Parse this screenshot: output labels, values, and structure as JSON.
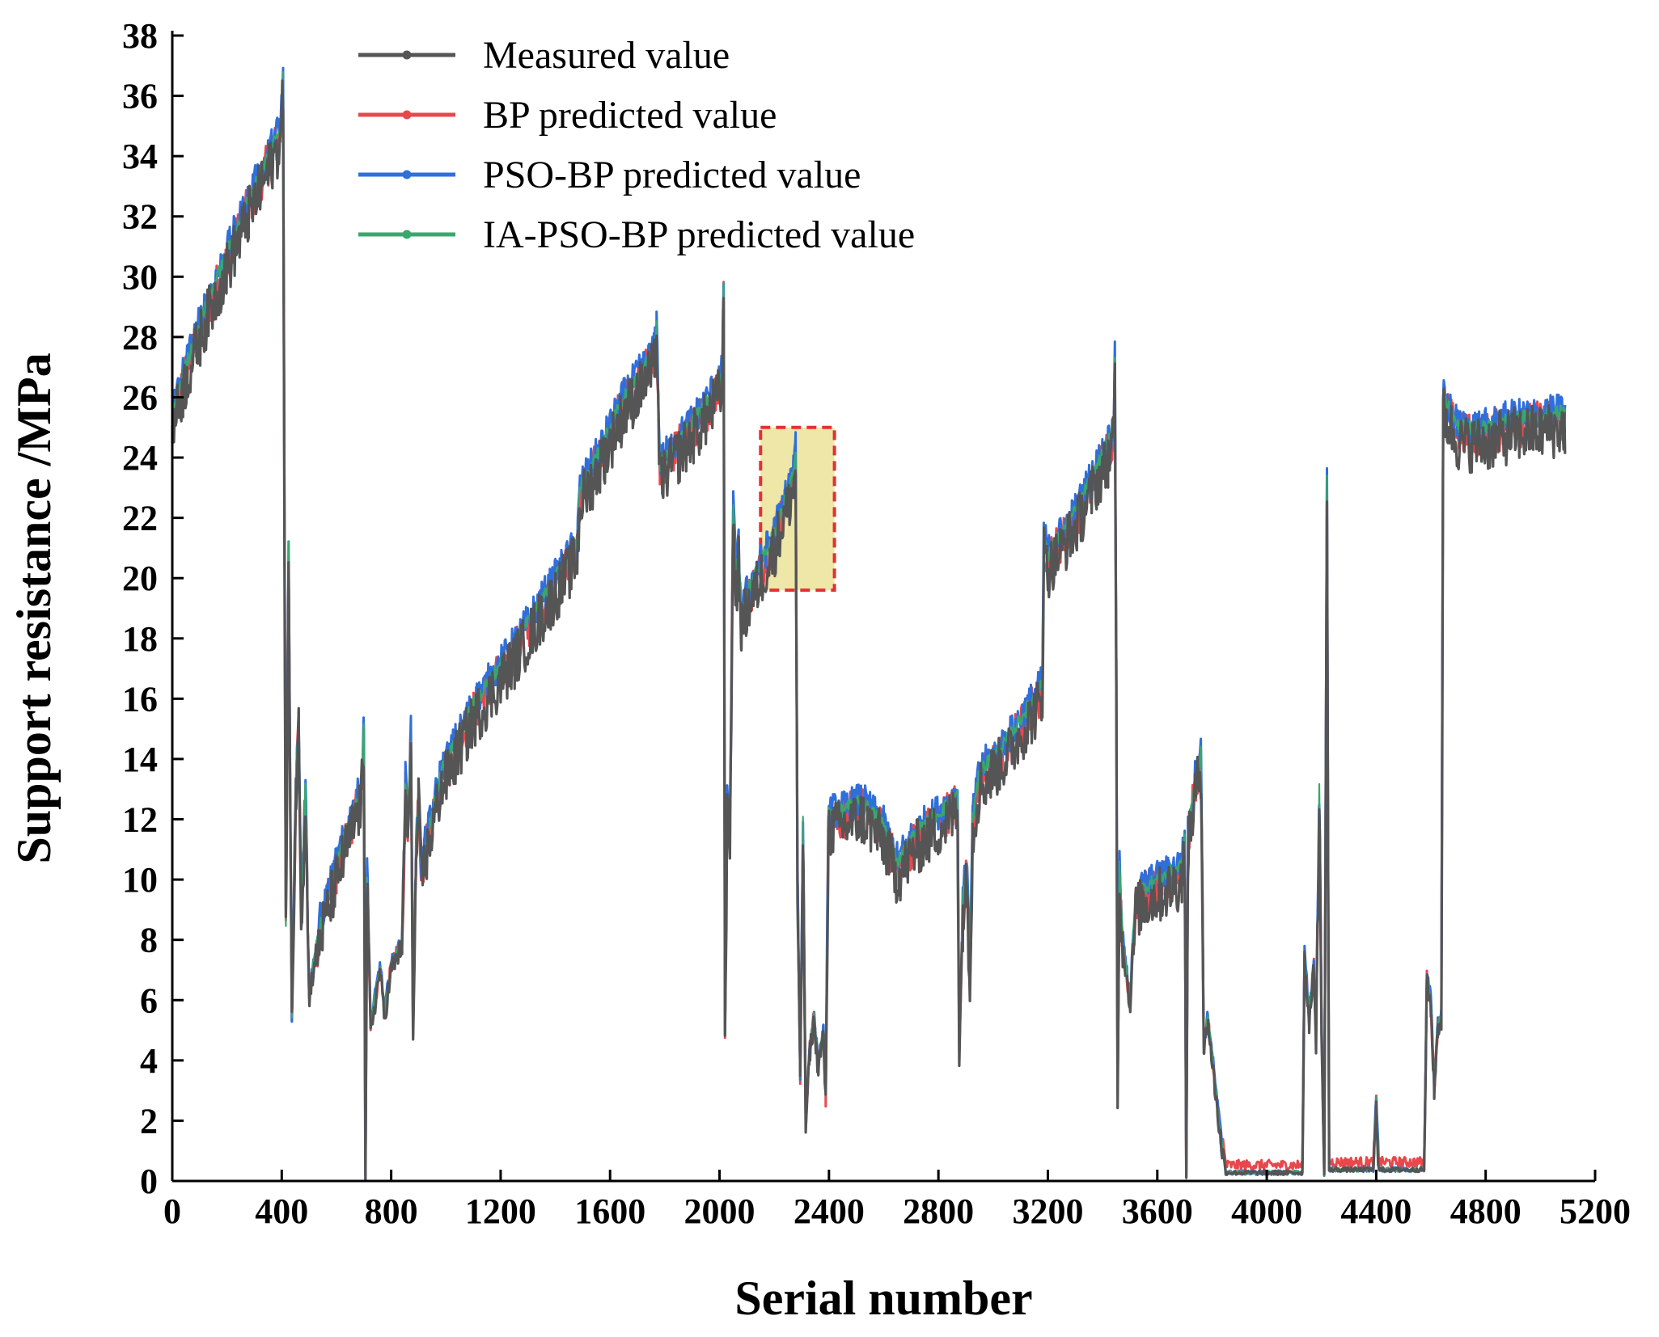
{
  "chart_data": {
    "type": "line",
    "title": "",
    "xlabel": "Serial number",
    "ylabel": "Support resistance /MPa",
    "xlim": [
      0,
      5200
    ],
    "ylim": [
      0,
      38
    ],
    "xticks": [
      0,
      400,
      800,
      1200,
      1600,
      2000,
      2400,
      2800,
      3200,
      3600,
      4000,
      4400,
      4800,
      5200
    ],
    "yticks": [
      0,
      2,
      4,
      6,
      8,
      10,
      12,
      14,
      16,
      18,
      20,
      22,
      24,
      26,
      28,
      30,
      32,
      34,
      36,
      38
    ],
    "grid": false,
    "legend_position": "top",
    "series": [
      {
        "name": "Measured value",
        "color": "#555555"
      },
      {
        "name": "BP predicted value",
        "color": "#e8484c"
      },
      {
        "name": "PSO-BP predicted value",
        "color": "#2f6fdc"
      },
      {
        "name": "IA-PSO-BP predicted value",
        "color": "#3aa76d"
      }
    ],
    "measured_profile": [
      [
        0,
        25.5
      ],
      [
        40,
        26.8
      ],
      [
        120,
        29.0
      ],
      [
        200,
        30.8
      ],
      [
        280,
        32.6
      ],
      [
        350,
        34.0
      ],
      [
        395,
        35.0
      ],
      [
        405,
        36.6
      ],
      [
        415,
        8.6
      ],
      [
        425,
        21.0
      ],
      [
        437,
        5.5
      ],
      [
        452,
        13.5
      ],
      [
        462,
        15.5
      ],
      [
        472,
        9.2
      ],
      [
        487,
        13.2
      ],
      [
        500,
        6.3
      ],
      [
        540,
        8.6
      ],
      [
        600,
        10.5
      ],
      [
        650,
        12.0
      ],
      [
        690,
        13.0
      ],
      [
        700,
        15.0
      ],
      [
        706,
        0.0
      ],
      [
        712,
        10.3
      ],
      [
        725,
        5.2
      ],
      [
        760,
        7.2
      ],
      [
        775,
        5.6
      ],
      [
        800,
        7.2
      ],
      [
        840,
        8.0
      ],
      [
        852,
        13.3
      ],
      [
        862,
        12.0
      ],
      [
        872,
        14.8
      ],
      [
        880,
        5.0
      ],
      [
        890,
        10.5
      ],
      [
        900,
        13.0
      ],
      [
        910,
        10.5
      ],
      [
        980,
        13.5
      ],
      [
        1100,
        15.8
      ],
      [
        1250,
        17.8
      ],
      [
        1400,
        20.0
      ],
      [
        1480,
        21.2
      ],
      [
        1490,
        23.0
      ],
      [
        1550,
        24.0
      ],
      [
        1650,
        26.0
      ],
      [
        1760,
        27.5
      ],
      [
        1770,
        28.5
      ],
      [
        1782,
        23.8
      ],
      [
        1850,
        24.6
      ],
      [
        1950,
        25.8
      ],
      [
        2010,
        26.8
      ],
      [
        2015,
        29.8
      ],
      [
        2020,
        5.0
      ],
      [
        2028,
        12.5
      ],
      [
        2038,
        11.8
      ],
      [
        2050,
        22.5
      ],
      [
        2060,
        20.0
      ],
      [
        2070,
        21.0
      ],
      [
        2080,
        18.8
      ],
      [
        2100,
        19.5
      ],
      [
        2200,
        21.5
      ],
      [
        2270,
        23.5
      ],
      [
        2278,
        24.2
      ],
      [
        2285,
        10.0
      ],
      [
        2295,
        3.5
      ],
      [
        2305,
        12.0
      ],
      [
        2315,
        2.0
      ],
      [
        2330,
        4.5
      ],
      [
        2345,
        5.5
      ],
      [
        2360,
        4.0
      ],
      [
        2380,
        5.0
      ],
      [
        2388,
        2.8
      ],
      [
        2398,
        12.2
      ],
      [
        2450,
        12.3
      ],
      [
        2520,
        12.6
      ],
      [
        2600,
        11.8
      ],
      [
        2650,
        10.6
      ],
      [
        2720,
        11.6
      ],
      [
        2850,
        12.6
      ],
      [
        2870,
        12.9
      ],
      [
        2876,
        4.2
      ],
      [
        2890,
        9.5
      ],
      [
        2905,
        10.5
      ],
      [
        2915,
        6.5
      ],
      [
        2925,
        12.0
      ],
      [
        2950,
        13.6
      ],
      [
        3050,
        14.6
      ],
      [
        3160,
        16.2
      ],
      [
        3180,
        16.5
      ],
      [
        3185,
        21.5
      ],
      [
        3200,
        20.8
      ],
      [
        3300,
        22.2
      ],
      [
        3420,
        24.5
      ],
      [
        3440,
        25.0
      ],
      [
        3445,
        27.2
      ],
      [
        3450,
        17.5
      ],
      [
        3455,
        3.0
      ],
      [
        3462,
        10.5
      ],
      [
        3475,
        8.0
      ],
      [
        3500,
        6.0
      ],
      [
        3520,
        9.5
      ],
      [
        3560,
        9.8
      ],
      [
        3640,
        10.2
      ],
      [
        3690,
        10.5
      ],
      [
        3700,
        11.5
      ],
      [
        3706,
        0.0
      ],
      [
        3712,
        11.5
      ],
      [
        3740,
        13.5
      ],
      [
        3760,
        14.2
      ],
      [
        3770,
        4.5
      ],
      [
        3785,
        5.5
      ],
      [
        3820,
        2.5
      ],
      [
        3850,
        0.2
      ],
      [
        4000,
        0.2
      ],
      [
        4130,
        0.2
      ],
      [
        4138,
        7.6
      ],
      [
        4155,
        5.5
      ],
      [
        4172,
        7.2
      ],
      [
        4180,
        4.8
      ],
      [
        4192,
        13.0
      ],
      [
        4200,
        5.5
      ],
      [
        4210,
        0.1
      ],
      [
        4220,
        23.2
      ],
      [
        4228,
        0.3
      ],
      [
        4390,
        0.3
      ],
      [
        4400,
        2.8
      ],
      [
        4410,
        0.3
      ],
      [
        4575,
        0.3
      ],
      [
        4585,
        6.8
      ],
      [
        4600,
        6.0
      ],
      [
        4612,
        3.2
      ],
      [
        4625,
        5.3
      ],
      [
        4638,
        5.5
      ],
      [
        4645,
        26.0
      ],
      [
        4700,
        25.0
      ],
      [
        4800,
        25.0
      ],
      [
        4900,
        25.3
      ],
      [
        5000,
        25.4
      ],
      [
        5090,
        25.5
      ]
    ]
  },
  "annotations": {
    "highlight_box": {
      "x_range": [
        2150,
        2420
      ],
      "y_range": [
        19.6,
        25.0
      ],
      "color": "#e53030",
      "fill": "#efe7a8"
    }
  }
}
